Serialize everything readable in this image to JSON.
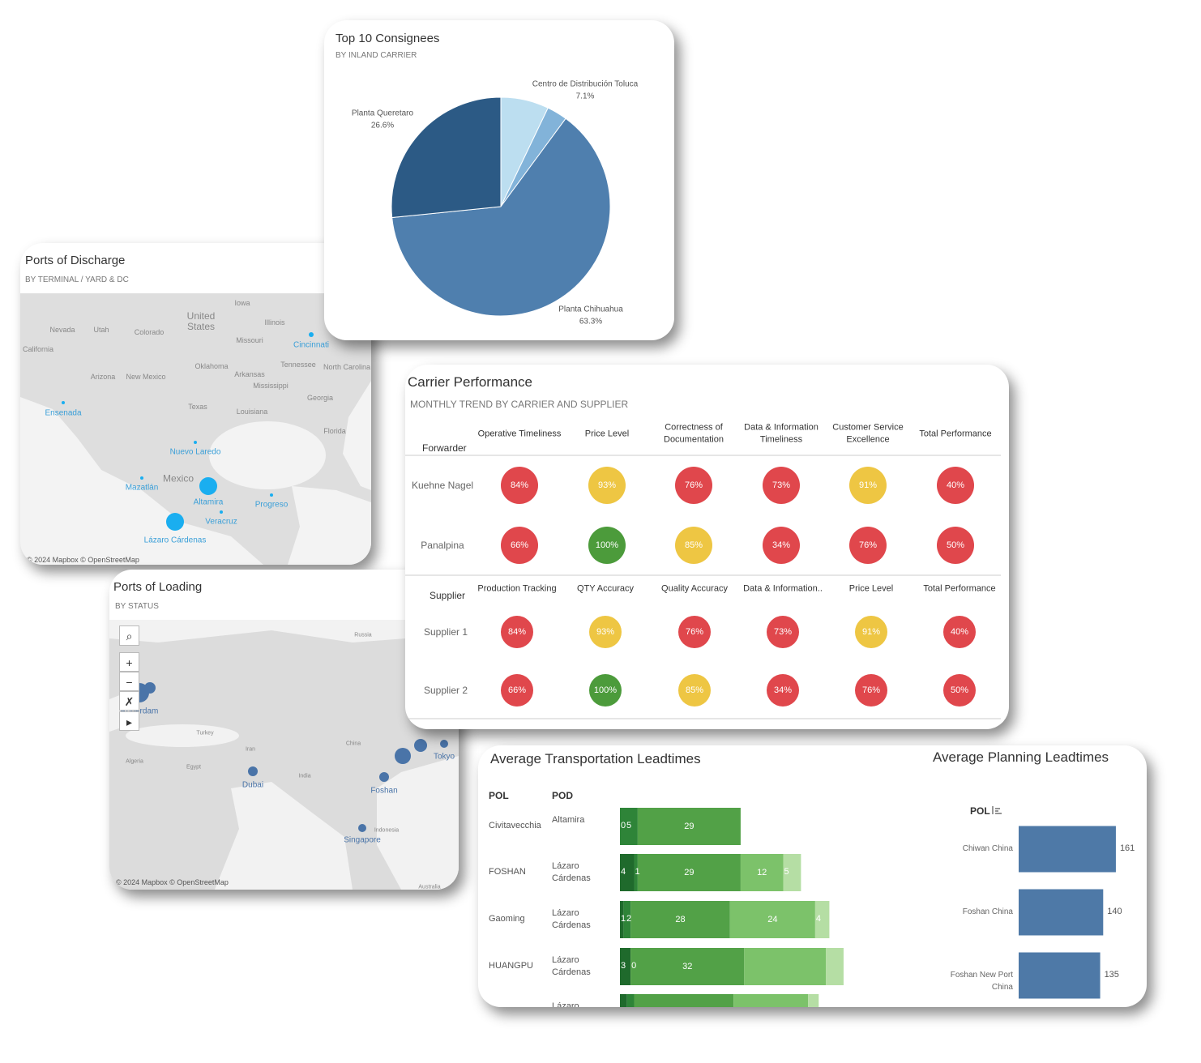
{
  "consignees": {
    "type": "pie",
    "title": "Top 10 Consignees",
    "subtitle": "BY INLAND CARRIER",
    "categories": [
      "Centro de Distribución Toluca",
      null,
      "Planta Chihuahua",
      "Planta Queretaro"
    ],
    "values": [
      7.1,
      3.0,
      63.3,
      26.6
    ],
    "value_labels": [
      "7.1%",
      null,
      "63.3%",
      "26.6%"
    ],
    "colors": [
      "#bcdef0",
      "#82b3d9",
      "#4f7fae",
      "#2c5a85"
    ]
  },
  "discharge": {
    "title": "Ports of Discharge",
    "subtitle": "BY TERMINAL / YARD & DC",
    "places": [
      "United States",
      "Iowa",
      "Nevada",
      "Utah",
      "Colorado",
      "Illinois",
      "Missouri",
      "California",
      "Oklahoma",
      "Tennessee",
      "North Carolina",
      "Arizona",
      "New Mexico",
      "Arkansas",
      "Mississippi",
      "Georgia",
      "Texas",
      "Louisiana",
      "Florida",
      "Mexico"
    ],
    "ports": [
      "Cincinnati",
      "Ensenada",
      "Nuevo Laredo",
      "Mazatlán",
      "Altamira",
      "Progreso",
      "Veracruz",
      "Lázaro Cárdenas"
    ],
    "port_color": "#1aaef0",
    "label_color": "#3a9fd8",
    "attribution": "© 2024 Mapbox © OpenStreetMap"
  },
  "loading": {
    "title": "Ports of Loading",
    "subtitle": "BY STATUS",
    "places": [
      "Russia",
      "Turkey",
      "Iran",
      "China",
      "India",
      "Algeria",
      "Egypt",
      "Indonesia",
      "Australia"
    ],
    "ports": [
      "Rotterdam",
      null,
      "Dubai",
      "Foshan",
      null,
      null,
      "Tokyo",
      "Singapore"
    ],
    "port_color": "#4a74a8",
    "attribution": "© 2024 Mapbox © OpenStreetMap"
  },
  "carrier": {
    "title": "Carrier Performance",
    "subtitle": "MONTHLY TREND BY CARRIER AND SUPPLIER",
    "colors": {
      "red": "#e0474c",
      "yellow": "#eec643",
      "green": "#4c9b3b"
    },
    "forwarder": {
      "label": "Forwarder",
      "columns": [
        "Operative Timeliness",
        "Price Level",
        "Correctness of Documentation",
        "Data & Information Timeliness",
        "Customer Service Excellence",
        "Total Performance"
      ],
      "rows": [
        {
          "name": "Kuehne Nagel",
          "cells": [
            "84%",
            "93%",
            "76%",
            "73%",
            "91%",
            "40%"
          ],
          "status": [
            "red",
            "yellow",
            "red",
            "red",
            "yellow",
            "red"
          ]
        },
        {
          "name": "Panalpina",
          "cells": [
            "66%",
            "100%",
            "85%",
            "34%",
            "76%",
            "50%"
          ],
          "status": [
            "red",
            "green",
            "yellow",
            "red",
            "red",
            "red"
          ]
        }
      ]
    },
    "supplier": {
      "label": "Supplier",
      "columns": [
        "Production Tracking",
        "QTY Accuracy",
        "Quality Accuracy",
        "Data & Information..",
        "Price Level",
        "Total Performance"
      ],
      "rows": [
        {
          "name": "Supplier 1",
          "cells": [
            "84%",
            "93%",
            "76%",
            "73%",
            "91%",
            "40%"
          ],
          "status": [
            "red",
            "yellow",
            "red",
            "red",
            "yellow",
            "red"
          ]
        },
        {
          "name": "Supplier 2",
          "cells": [
            "66%",
            "100%",
            "85%",
            "34%",
            "76%",
            "50%"
          ],
          "status": [
            "red",
            "green",
            "yellow",
            "red",
            "red",
            "red"
          ]
        }
      ]
    }
  },
  "transport": {
    "type": "stacked-bar",
    "title": "Average Transportation Leadtimes",
    "headers": [
      "POL",
      "POD"
    ],
    "colors": [
      "#1f6a2c",
      "#2e8438",
      "#52a147",
      "#7cc26a",
      "#b5dea4"
    ],
    "rows": [
      {
        "pol": "Civitavecchia",
        "pod": "Altamira",
        "values": [
          0,
          5,
          29
        ],
        "value_labels": [
          "0",
          "5",
          "29"
        ]
      },
      {
        "pol": "FOSHAN",
        "pod": "Lázaro Cárdenas",
        "values": [
          4,
          1,
          29,
          12,
          5
        ],
        "value_labels": [
          "4",
          "1",
          "29",
          "12",
          "5"
        ]
      },
      {
        "pol": "Gaoming",
        "pod": "Lázaro Cárdenas",
        "values": [
          1,
          2,
          28,
          24,
          4
        ],
        "value_labels": [
          "1",
          "2",
          "28",
          "24",
          "4"
        ]
      },
      {
        "pol": "HUANGPU",
        "pod": "Lázaro Cárdenas",
        "values": [
          3,
          0,
          32,
          23,
          5
        ],
        "value_labels": [
          "3",
          "0",
          "32",
          null,
          null
        ]
      },
      {
        "pol": null,
        "pod": "Lázaro",
        "values": [
          2,
          2,
          28,
          21,
          3
        ],
        "value_labels": [
          null,
          null,
          null,
          null,
          null
        ]
      }
    ]
  },
  "planning": {
    "type": "bar",
    "title": "Average Planning Leadtimes",
    "header": "POL",
    "categories": [
      "Chiwan China",
      "Foshan China",
      "Foshan New Port China"
    ],
    "values": [
      161,
      140,
      135
    ],
    "color": "#4e79a7"
  }
}
